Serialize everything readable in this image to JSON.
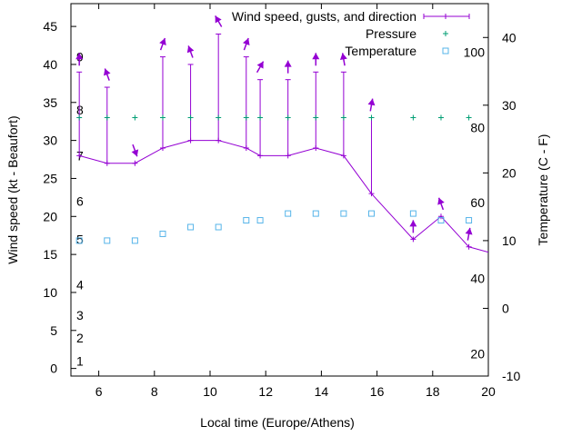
{
  "chart_data": {
    "type": "line",
    "xlabel": "Local time (Europe/Athens)",
    "ylabel_left": "Wind speed (kt - Beaufort)",
    "ylabel_right": "Temperature (C - F)",
    "xlim": [
      5,
      20
    ],
    "ylim_left": [
      -1,
      48
    ],
    "ylim_right": [
      -10,
      45
    ],
    "x_ticks": [
      6,
      8,
      10,
      12,
      14,
      16,
      18,
      20
    ],
    "y_ticks_left": [
      0,
      5,
      10,
      15,
      20,
      25,
      30,
      35,
      40,
      45
    ],
    "y_ticks_right": [
      -10,
      0,
      10,
      20,
      30,
      40
    ],
    "beaufort_labels": [
      {
        "label": "1",
        "kt": 1
      },
      {
        "label": "2",
        "kt": 4
      },
      {
        "label": "3",
        "kt": 7
      },
      {
        "label": "4",
        "kt": 11
      },
      {
        "label": "5",
        "kt": 17
      },
      {
        "label": "6",
        "kt": 22
      },
      {
        "label": "7",
        "kt": 28
      },
      {
        "label": "8",
        "kt": 34
      },
      {
        "label": "9",
        "kt": 41
      }
    ],
    "fahrenheit_labels": [
      {
        "label": "20",
        "c": -6.7
      },
      {
        "label": "40",
        "c": 4.4
      },
      {
        "label": "60",
        "c": 15.6
      },
      {
        "label": "80",
        "c": 26.7
      },
      {
        "label": "100",
        "c": 37.8
      }
    ],
    "legend_position": "top-right",
    "series": [
      {
        "name": "Wind speed, gusts, and direction",
        "color": "#9400d3",
        "x": [
          5.3,
          6.3,
          7.3,
          8.3,
          9.3,
          10.3,
          11.3,
          11.8,
          12.8,
          13.8,
          14.8,
          15.8,
          17.3,
          18.3,
          19.3
        ],
        "values": [
          28,
          27,
          27,
          29,
          30,
          30,
          29,
          28,
          28,
          29,
          28,
          23,
          17,
          20,
          16
        ],
        "gusts": [
          39,
          37,
          null,
          41,
          40,
          44,
          41,
          38,
          38,
          39,
          39,
          33,
          null,
          null,
          null
        ],
        "direction_deg": [
          0,
          20,
          200,
          340,
          20,
          30,
          340,
          330,
          0,
          0,
          10,
          350,
          0,
          20,
          350
        ]
      },
      {
        "name": "Pressure",
        "color": "#009e73",
        "x": [
          5.3,
          6.3,
          7.3,
          8.3,
          9.3,
          10.3,
          11.3,
          11.8,
          12.8,
          13.8,
          14.8,
          15.8,
          17.3,
          18.3,
          19.3
        ],
        "values": [
          33,
          33,
          33,
          33,
          33,
          33,
          33,
          33,
          33,
          33,
          33,
          33,
          33,
          33,
          33
        ]
      },
      {
        "name": "Temperature",
        "color": "#56b4e9",
        "x": [
          5.3,
          6.3,
          7.3,
          8.3,
          9.3,
          10.3,
          11.3,
          11.8,
          12.8,
          13.8,
          14.8,
          15.8,
          17.3,
          18.3,
          19.3
        ],
        "values": [
          10,
          10,
          10,
          11,
          12,
          12,
          13,
          13,
          14,
          14,
          14,
          14,
          14,
          13,
          13
        ]
      }
    ]
  }
}
